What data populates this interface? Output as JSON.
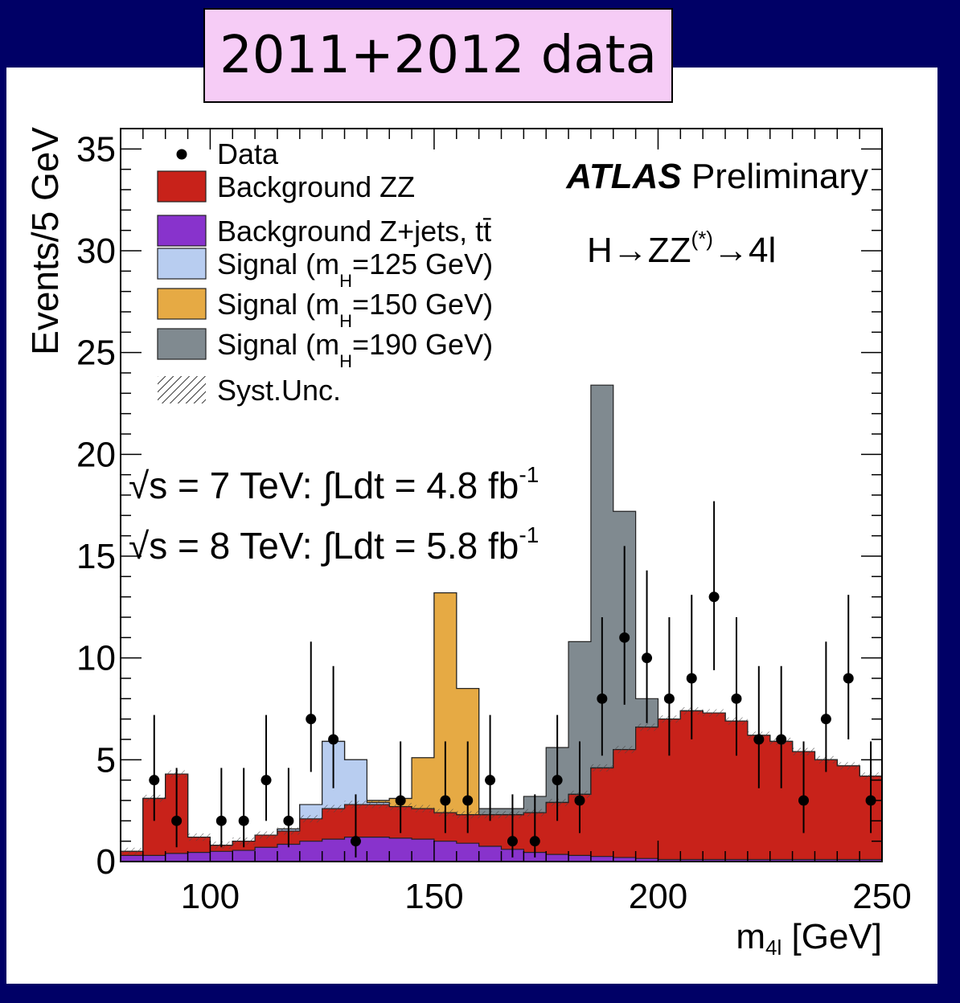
{
  "badge": "2011+2012 data",
  "chart_data": {
    "type": "bar",
    "subtype": "stacked-histogram",
    "bin_width": 5,
    "x_edges": [
      80,
      85,
      90,
      95,
      100,
      105,
      110,
      115,
      120,
      125,
      130,
      135,
      140,
      145,
      150,
      155,
      160,
      165,
      170,
      175,
      180,
      185,
      190,
      195,
      200,
      205,
      210,
      215,
      220,
      225,
      230,
      235,
      240,
      245,
      250
    ],
    "xlim": [
      80,
      250
    ],
    "ylim": [
      0,
      36
    ],
    "xlabel": "m",
    "xlabel_sub": "4l",
    "xlabel_unit": " [GeV]",
    "ylabel": "Events/5 GeV",
    "x_ticks": [
      100,
      150,
      200,
      250
    ],
    "y_ticks": [
      0,
      5,
      10,
      15,
      20,
      25,
      30,
      35
    ],
    "atlas_label": "ATLAS",
    "atlas_label_suffix": " Preliminary",
    "process_main": "H→ZZ",
    "process_sup": "(*)",
    "process_tail": "→4l",
    "lumi_lines": [
      {
        "sqrt": "√s = 7 TeV:",
        "integral": "∫Ldt = 4.8 fb",
        "sup": "-1"
      },
      {
        "sqrt": "√s = 8 TeV:",
        "integral": "∫Ldt = 5.8 fb",
        "sup": "-1"
      }
    ],
    "legend": {
      "position": "top-left",
      "entries": [
        {
          "label": "Data",
          "sub": "",
          "tail": "",
          "swatch": "marker"
        },
        {
          "label": "Background ZZ",
          "sub": "",
          "tail": "",
          "swatch": "#c8221a"
        },
        {
          "label": "Background Z+jets, t",
          "sub": "",
          "tail": "t̄",
          "swatch": "#8833cc"
        },
        {
          "label": "Signal (m",
          "sub": "H",
          "tail": "=125 GeV)",
          "swatch": "#b8cdf0"
        },
        {
          "label": "Signal (m",
          "sub": "H",
          "tail": "=150 GeV)",
          "swatch": "#e6aa44"
        },
        {
          "label": "Signal (m",
          "sub": "H",
          "tail": "=190 GeV)",
          "swatch": "#808a90"
        },
        {
          "label": "Syst.Unc.",
          "sub": "",
          "tail": "",
          "swatch": "hatch"
        }
      ]
    },
    "colors": {
      "zjets": "#8833cc",
      "zz": "#c8221a",
      "sig125": "#b8cdf0",
      "sig150": "#e6aa44",
      "sig190": "#808a90"
    },
    "stack_top_cumulative": {
      "zjets": [
        0.3,
        0.3,
        0.4,
        0.45,
        0.5,
        0.55,
        0.7,
        0.85,
        1.0,
        1.1,
        1.2,
        1.2,
        1.15,
        1.1,
        1.0,
        0.9,
        0.75,
        0.6,
        0.45,
        0.35,
        0.3,
        0.25,
        0.2,
        0.15,
        0.1,
        0.1,
        0.1,
        0.1,
        0.1,
        0.1,
        0.1,
        0.1,
        0.1,
        0.1
      ],
      "zz": [
        0.5,
        3.1,
        4.3,
        1.2,
        0.8,
        1.0,
        1.3,
        1.5,
        2.1,
        2.6,
        2.8,
        2.8,
        2.7,
        2.6,
        2.4,
        2.3,
        2.3,
        2.3,
        2.4,
        2.9,
        3.3,
        4.6,
        5.5,
        6.6,
        7.0,
        7.4,
        7.3,
        6.9,
        6.2,
        5.9,
        5.4,
        5.0,
        4.7,
        4.2
      ],
      "sig125": [
        0.5,
        3.1,
        4.3,
        1.2,
        0.8,
        1.0,
        1.3,
        1.6,
        2.8,
        5.9,
        5.0,
        2.9,
        2.7,
        2.6,
        2.4,
        2.3,
        2.3,
        2.3,
        2.4,
        2.9,
        3.3,
        4.6,
        5.5,
        6.6,
        7.0,
        7.4,
        7.3,
        6.9,
        6.2,
        5.9,
        5.4,
        5.0,
        4.7,
        4.2
      ],
      "sig150": [
        0.5,
        3.1,
        4.3,
        1.2,
        0.8,
        1.0,
        1.3,
        1.6,
        2.8,
        5.9,
        5.0,
        3.0,
        3.1,
        5.1,
        13.2,
        8.5,
        2.3,
        2.3,
        2.4,
        2.9,
        3.3,
        4.6,
        5.5,
        6.6,
        7.0,
        7.4,
        7.3,
        6.9,
        6.2,
        5.9,
        5.4,
        5.0,
        4.7,
        4.2
      ],
      "sig190": [
        0.5,
        3.1,
        4.3,
        1.2,
        0.8,
        1.0,
        1.3,
        1.6,
        2.8,
        5.9,
        5.0,
        3.0,
        3.1,
        5.1,
        13.2,
        8.5,
        2.6,
        2.6,
        3.2,
        5.6,
        10.8,
        23.4,
        17.2,
        8.0,
        7.0,
        7.4,
        7.3,
        6.9,
        6.2,
        5.9,
        5.4,
        5.0,
        4.7,
        4.2
      ]
    },
    "data_points": [
      {
        "x": 87.5,
        "y": 4,
        "err_lo": 2.0,
        "err_hi": 3.2
      },
      {
        "x": 92.5,
        "y": 2,
        "err_lo": 1.3,
        "err_hi": 2.6
      },
      {
        "x": 102.5,
        "y": 2,
        "err_lo": 1.3,
        "err_hi": 2.6
      },
      {
        "x": 107.5,
        "y": 2,
        "err_lo": 1.3,
        "err_hi": 2.6
      },
      {
        "x": 112.5,
        "y": 4,
        "err_lo": 2.0,
        "err_hi": 3.2
      },
      {
        "x": 117.5,
        "y": 2,
        "err_lo": 1.3,
        "err_hi": 2.6
      },
      {
        "x": 122.5,
        "y": 7,
        "err_lo": 2.6,
        "err_hi": 3.8
      },
      {
        "x": 127.5,
        "y": 6,
        "err_lo": 2.4,
        "err_hi": 3.6
      },
      {
        "x": 132.5,
        "y": 1,
        "err_lo": 0.8,
        "err_hi": 2.3
      },
      {
        "x": 142.5,
        "y": 3,
        "err_lo": 1.6,
        "err_hi": 2.9
      },
      {
        "x": 152.5,
        "y": 3,
        "err_lo": 1.6,
        "err_hi": 2.9
      },
      {
        "x": 157.5,
        "y": 3,
        "err_lo": 1.6,
        "err_hi": 2.9
      },
      {
        "x": 162.5,
        "y": 4,
        "err_lo": 2.0,
        "err_hi": 3.2
      },
      {
        "x": 167.5,
        "y": 1,
        "err_lo": 0.8,
        "err_hi": 2.3
      },
      {
        "x": 172.5,
        "y": 1,
        "err_lo": 0.8,
        "err_hi": 2.3
      },
      {
        "x": 177.5,
        "y": 4,
        "err_lo": 2.0,
        "err_hi": 3.2
      },
      {
        "x": 182.5,
        "y": 3,
        "err_lo": 1.6,
        "err_hi": 2.9
      },
      {
        "x": 187.5,
        "y": 8,
        "err_lo": 2.8,
        "err_hi": 4.0
      },
      {
        "x": 192.5,
        "y": 11,
        "err_lo": 3.3,
        "err_hi": 4.5
      },
      {
        "x": 197.5,
        "y": 10,
        "err_lo": 3.2,
        "err_hi": 4.3
      },
      {
        "x": 202.5,
        "y": 8,
        "err_lo": 2.8,
        "err_hi": 4.0
      },
      {
        "x": 207.5,
        "y": 9,
        "err_lo": 3.0,
        "err_hi": 4.1
      },
      {
        "x": 212.5,
        "y": 13,
        "err_lo": 3.6,
        "err_hi": 4.7
      },
      {
        "x": 217.5,
        "y": 8,
        "err_lo": 2.8,
        "err_hi": 4.0
      },
      {
        "x": 222.5,
        "y": 6,
        "err_lo": 2.4,
        "err_hi": 3.6
      },
      {
        "x": 227.5,
        "y": 6,
        "err_lo": 2.4,
        "err_hi": 3.6
      },
      {
        "x": 232.5,
        "y": 3,
        "err_lo": 1.6,
        "err_hi": 2.9
      },
      {
        "x": 237.5,
        "y": 7,
        "err_lo": 2.6,
        "err_hi": 3.8
      },
      {
        "x": 242.5,
        "y": 9,
        "err_lo": 3.0,
        "err_hi": 4.1
      },
      {
        "x": 247.5,
        "y": 3,
        "err_lo": 1.6,
        "err_hi": 2.9
      }
    ]
  }
}
